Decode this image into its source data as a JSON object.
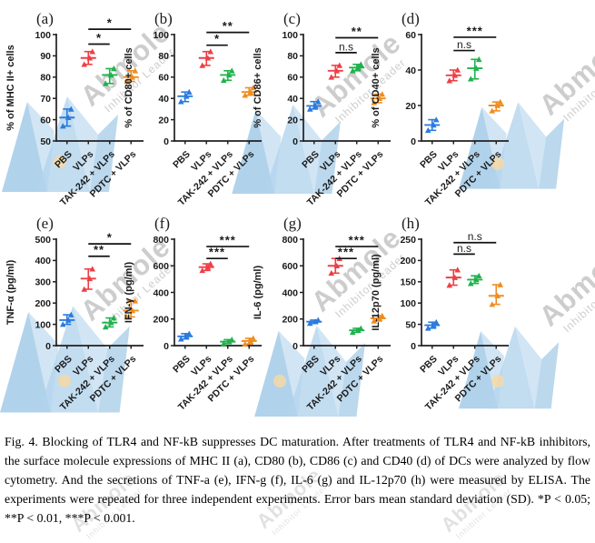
{
  "watermark": {
    "brand": "Abmole",
    "tagline": "Inhibitor Leader",
    "text_color": "#979797",
    "logo_colors": [
      "#9ec7e6",
      "#c9e0f2",
      "#b3d3ec"
    ],
    "dot_color": "#f6d9a6"
  },
  "figure": {
    "label": "Fig. 4.",
    "categories": [
      "PBS",
      "VLPs",
      "TAK-242 + VLPs",
      "PDTC + VLPs"
    ],
    "group_colors": [
      "#2b7bdd",
      "#ee3f46",
      "#1fb24c",
      "#ef8d21"
    ],
    "axis_color": "#231f20",
    "sig_levels": [
      "*P < 0.05",
      "**P < 0.01",
      "***P < 0.001"
    ]
  },
  "chart_data": [
    {
      "label": "(a)",
      "type": "scatter",
      "ylabel": "% of MHC II+ cells",
      "xlabel": "",
      "ylim": [
        50,
        100
      ],
      "yticks": [
        50,
        60,
        70,
        80,
        90,
        100
      ],
      "grid": false,
      "categories": [
        "PBS",
        "VLPs",
        "TAK-242 + VLPs",
        "PDTC + VLPs"
      ],
      "series": [
        {
          "name": "PBS",
          "mean": 61,
          "points": [
            57,
            61,
            65
          ]
        },
        {
          "name": "VLPs",
          "mean": 89,
          "points": [
            86,
            89,
            92
          ]
        },
        {
          "name": "TAK-242 + VLPs",
          "mean": 81,
          "points": [
            77,
            81,
            84
          ]
        },
        {
          "name": "PDTC + VLPs",
          "mean": 80,
          "points": [
            78,
            80,
            83
          ]
        }
      ],
      "significance": [
        {
          "from": 1,
          "to": 2,
          "label": "*",
          "y": 95.5
        },
        {
          "from": 1,
          "to": 3,
          "label": "*",
          "y": 102.5
        }
      ]
    },
    {
      "label": "(b)",
      "type": "scatter",
      "ylabel": "% of CD80+ cells",
      "xlabel": "",
      "ylim": [
        0,
        100
      ],
      "yticks": [
        0,
        20,
        40,
        60,
        80,
        100
      ],
      "grid": false,
      "categories": [
        "PBS",
        "VLPs",
        "TAK-242 + VLPs",
        "PDTC + VLPs"
      ],
      "series": [
        {
          "name": "PBS",
          "mean": 42,
          "points": [
            37,
            42,
            46
          ]
        },
        {
          "name": "VLPs",
          "mean": 78,
          "points": [
            71,
            78,
            84
          ]
        },
        {
          "name": "TAK-242 + VLPs",
          "mean": 62,
          "points": [
            57,
            62,
            66
          ]
        },
        {
          "name": "PDTC + VLPs",
          "mean": 46,
          "points": [
            43,
            46,
            50
          ]
        }
      ],
      "significance": [
        {
          "from": 1,
          "to": 2,
          "label": "*",
          "y": 90
        },
        {
          "from": 1,
          "to": 3,
          "label": "**",
          "y": 102
        }
      ]
    },
    {
      "label": "(c)",
      "type": "scatter",
      "ylabel": "% of CD86+ cells",
      "xlabel": "",
      "ylim": [
        0,
        100
      ],
      "yticks": [
        0,
        20,
        40,
        60,
        80,
        100
      ],
      "grid": false,
      "categories": [
        "PBS",
        "VLPs",
        "TAK-242 + VLPs",
        "PDTC + VLPs"
      ],
      "series": [
        {
          "name": "PBS",
          "mean": 33,
          "points": [
            30,
            33,
            37
          ]
        },
        {
          "name": "VLPs",
          "mean": 66,
          "points": [
            60,
            66,
            71
          ]
        },
        {
          "name": "TAK-242 + VLPs",
          "mean": 69,
          "points": [
            66,
            69,
            72
          ]
        },
        {
          "name": "PDTC + VLPs",
          "mean": 40,
          "points": [
            36,
            40,
            44
          ]
        }
      ],
      "significance": [
        {
          "from": 1,
          "to": 2,
          "label": "n.s",
          "y": 83
        },
        {
          "from": 1,
          "to": 3,
          "label": "**",
          "y": 97
        }
      ]
    },
    {
      "label": "(d)",
      "type": "scatter",
      "ylabel": "% of CD40+ cells",
      "xlabel": "",
      "ylim": [
        0,
        60
      ],
      "yticks": [
        0,
        20,
        40,
        60
      ],
      "grid": false,
      "categories": [
        "PBS",
        "VLPs",
        "TAK-242 + VLPs",
        "PDTC + VLPs"
      ],
      "series": [
        {
          "name": "PBS",
          "mean": 9,
          "points": [
            6,
            9,
            12
          ]
        },
        {
          "name": "VLPs",
          "mean": 37,
          "points": [
            34,
            37,
            40
          ]
        },
        {
          "name": "TAK-242 + VLPs",
          "mean": 41,
          "points": [
            35,
            41,
            46
          ]
        },
        {
          "name": "PDTC + VLPs",
          "mean": 20,
          "points": [
            17,
            20,
            22
          ]
        }
      ],
      "significance": [
        {
          "from": 1,
          "to": 2,
          "label": "n.s",
          "y": 51
        },
        {
          "from": 1,
          "to": 3,
          "label": "***",
          "y": 58.5
        }
      ]
    },
    {
      "label": "(e)",
      "type": "scatter",
      "ylabel": "TNF-α (pg/ml)",
      "xlabel": "",
      "ylim": [
        0,
        500
      ],
      "yticks": [
        0,
        100,
        200,
        300,
        400,
        500
      ],
      "grid": false,
      "categories": [
        "PBS",
        "VLPs",
        "TAK-242 + VLPs",
        "PDTC + VLPs"
      ],
      "series": [
        {
          "name": "PBS",
          "mean": 120,
          "points": [
            100,
            120,
            145
          ]
        },
        {
          "name": "VLPs",
          "mean": 315,
          "points": [
            265,
            315,
            360
          ]
        },
        {
          "name": "TAK-242 + VLPs",
          "mean": 108,
          "points": [
            88,
            108,
            130
          ]
        },
        {
          "name": "PDTC + VLPs",
          "mean": 165,
          "points": [
            135,
            165,
            210
          ]
        }
      ],
      "significance": [
        {
          "from": 1,
          "to": 2,
          "label": "**",
          "y": 420
        },
        {
          "from": 1,
          "to": 3,
          "label": "*",
          "y": 478
        }
      ]
    },
    {
      "label": "(f)",
      "type": "scatter",
      "ylabel": "IFN-γ (pg/ml)",
      "xlabel": "",
      "ylim": [
        0,
        800
      ],
      "yticks": [
        0,
        200,
        400,
        600,
        800
      ],
      "grid": false,
      "categories": [
        "PBS",
        "VLPs",
        "TAK-242 + VLPs",
        "PDTC + VLPs"
      ],
      "series": [
        {
          "name": "PBS",
          "mean": 70,
          "points": [
            50,
            70,
            90
          ]
        },
        {
          "name": "VLPs",
          "mean": 590,
          "points": [
            565,
            590,
            615
          ]
        },
        {
          "name": "TAK-242 + VLPs",
          "mean": 30,
          "points": [
            15,
            30,
            45
          ]
        },
        {
          "name": "PDTC + VLPs",
          "mean": 35,
          "points": [
            12,
            35,
            55
          ]
        }
      ],
      "significance": [
        {
          "from": 1,
          "to": 2,
          "label": "***",
          "y": 655
        },
        {
          "from": 1,
          "to": 3,
          "label": "***",
          "y": 745
        }
      ]
    },
    {
      "label": "(g)",
      "type": "scatter",
      "ylabel": "IL-6 (pg/ml)",
      "xlabel": "",
      "ylim": [
        0,
        800
      ],
      "yticks": [
        0,
        200,
        400,
        600,
        800
      ],
      "grid": false,
      "categories": [
        "PBS",
        "VLPs",
        "TAK-242 + VLPs",
        "PDTC + VLPs"
      ],
      "series": [
        {
          "name": "PBS",
          "mean": 180,
          "points": [
            168,
            180,
            192
          ]
        },
        {
          "name": "VLPs",
          "mean": 600,
          "points": [
            545,
            600,
            655
          ]
        },
        {
          "name": "TAK-242 + VLPs",
          "mean": 115,
          "points": [
            100,
            115,
            130
          ]
        },
        {
          "name": "PDTC + VLPs",
          "mean": 205,
          "points": [
            185,
            205,
            225
          ]
        }
      ],
      "significance": [
        {
          "from": 1,
          "to": 2,
          "label": "***",
          "y": 655
        },
        {
          "from": 1,
          "to": 3,
          "label": "***",
          "y": 745
        }
      ]
    },
    {
      "label": "(h)",
      "type": "scatter",
      "ylabel": "IL-12p70 (pg/ml)",
      "xlabel": "",
      "ylim": [
        0,
        250
      ],
      "yticks": [
        0,
        50,
        100,
        150,
        200,
        250
      ],
      "grid": false,
      "categories": [
        "PBS",
        "VLPs",
        "TAK-242 + VLPs",
        "PDTC + VLPs"
      ],
      "series": [
        {
          "name": "PBS",
          "mean": 48,
          "points": [
            41,
            48,
            55
          ]
        },
        {
          "name": "VLPs",
          "mean": 160,
          "points": [
            142,
            160,
            178
          ]
        },
        {
          "name": "TAK-242 + VLPs",
          "mean": 155,
          "points": [
            146,
            155,
            164
          ]
        },
        {
          "name": "PDTC + VLPs",
          "mean": 117,
          "points": [
            97,
            117,
            143
          ]
        }
      ],
      "significance": [
        {
          "from": 1,
          "to": 2,
          "label": "n.s",
          "y": 215
        },
        {
          "from": 1,
          "to": 3,
          "label": "n.s",
          "y": 242
        }
      ]
    }
  ],
  "caption": {
    "text": "Fig. 4. Blocking of TLR4 and NF-kB suppresses DC maturation. After treatments of TLR4 and NF-kB inhibitors, the surface molecule expressions of MHC II (a), CD80 (b), CD86 (c) and CD40 (d) of DCs were analyzed by flow cytometry. And the secretions of TNF-a (e), IFN-g (f), IL-6 (g) and IL-12p70 (h) were measured by ELISA. The experiments were repeated for three independent experiments. Error bars mean standard deviation (SD). *P < 0.05; **P < 0.01, ***P < 0.001."
  }
}
